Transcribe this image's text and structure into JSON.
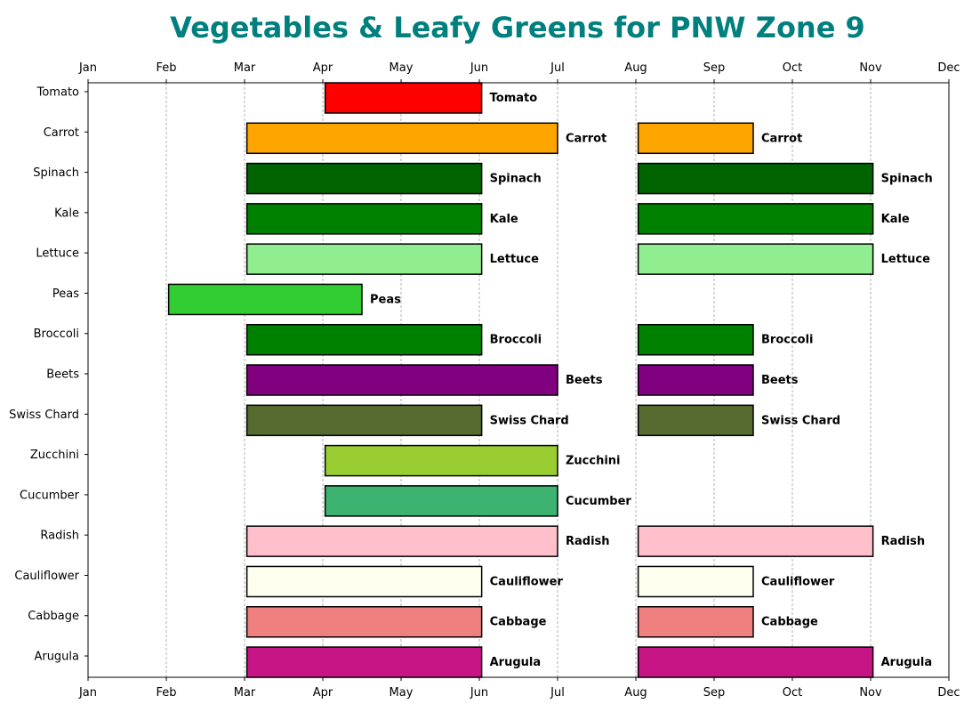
{
  "chart_data": {
    "type": "bar",
    "orientation": "horizontal-gantt",
    "title": "Vegetables & Leafy Greens for PNW Zone 9",
    "title_color": "#007f7f",
    "x_ticks": [
      "Jan",
      "Feb",
      "Mar",
      "Apr",
      "May",
      "Jun",
      "Jul",
      "Aug",
      "Sep",
      "Oct",
      "Nov",
      "Dec"
    ],
    "x_axis_position": "top and bottom",
    "grid": "vertical dashed",
    "xlim": [
      1,
      12
    ],
    "categories": [
      "Tomato",
      "Carrot",
      "Spinach",
      "Kale",
      "Lettuce",
      "Peas",
      "Broccoli",
      "Beets",
      "Swiss Chard",
      "Zucchini",
      "Cucumber",
      "Radish",
      "Cauliflower",
      "Cabbage",
      "Arugula"
    ],
    "series": [
      {
        "label": "Tomato",
        "color": "#ff0000",
        "ranges": [
          [
            4.03,
            6.03
          ]
        ]
      },
      {
        "label": "Carrot",
        "color": "#ffa500",
        "ranges": [
          [
            3.03,
            7.0
          ],
          [
            8.03,
            9.5
          ]
        ]
      },
      {
        "label": "Spinach",
        "color": "#006400",
        "ranges": [
          [
            3.03,
            6.03
          ],
          [
            8.03,
            11.03
          ]
        ]
      },
      {
        "label": "Kale",
        "color": "#008000",
        "ranges": [
          [
            3.03,
            6.03
          ],
          [
            8.03,
            11.03
          ]
        ]
      },
      {
        "label": "Lettuce",
        "color": "#90ee90",
        "ranges": [
          [
            3.03,
            6.03
          ],
          [
            8.03,
            11.03
          ]
        ]
      },
      {
        "label": "Peas",
        "color": "#32cd32",
        "ranges": [
          [
            2.03,
            4.5
          ]
        ]
      },
      {
        "label": "Broccoli",
        "color": "#008000",
        "ranges": [
          [
            3.03,
            6.03
          ],
          [
            8.03,
            9.5
          ]
        ]
      },
      {
        "label": "Beets",
        "color": "#800080",
        "ranges": [
          [
            3.03,
            7.0
          ],
          [
            8.03,
            9.5
          ]
        ]
      },
      {
        "label": "Swiss Chard",
        "color": "#556b2f",
        "ranges": [
          [
            3.03,
            6.03
          ],
          [
            8.03,
            9.5
          ]
        ]
      },
      {
        "label": "Zucchini",
        "color": "#9acd32",
        "ranges": [
          [
            4.03,
            7.0
          ]
        ]
      },
      {
        "label": "Cucumber",
        "color": "#3cb371",
        "ranges": [
          [
            4.03,
            7.0
          ]
        ]
      },
      {
        "label": "Radish",
        "color": "#ffc0cb",
        "ranges": [
          [
            3.03,
            7.0
          ],
          [
            8.03,
            11.03
          ]
        ]
      },
      {
        "label": "Cauliflower",
        "color": "#fffff0",
        "ranges": [
          [
            3.03,
            6.03
          ],
          [
            8.03,
            9.5
          ]
        ]
      },
      {
        "label": "Cabbage",
        "color": "#f08080",
        "ranges": [
          [
            3.03,
            6.03
          ],
          [
            8.03,
            9.5
          ]
        ]
      },
      {
        "label": "Arugula",
        "color": "#c71585",
        "ranges": [
          [
            3.03,
            6.03
          ],
          [
            8.03,
            11.03
          ]
        ]
      }
    ]
  }
}
